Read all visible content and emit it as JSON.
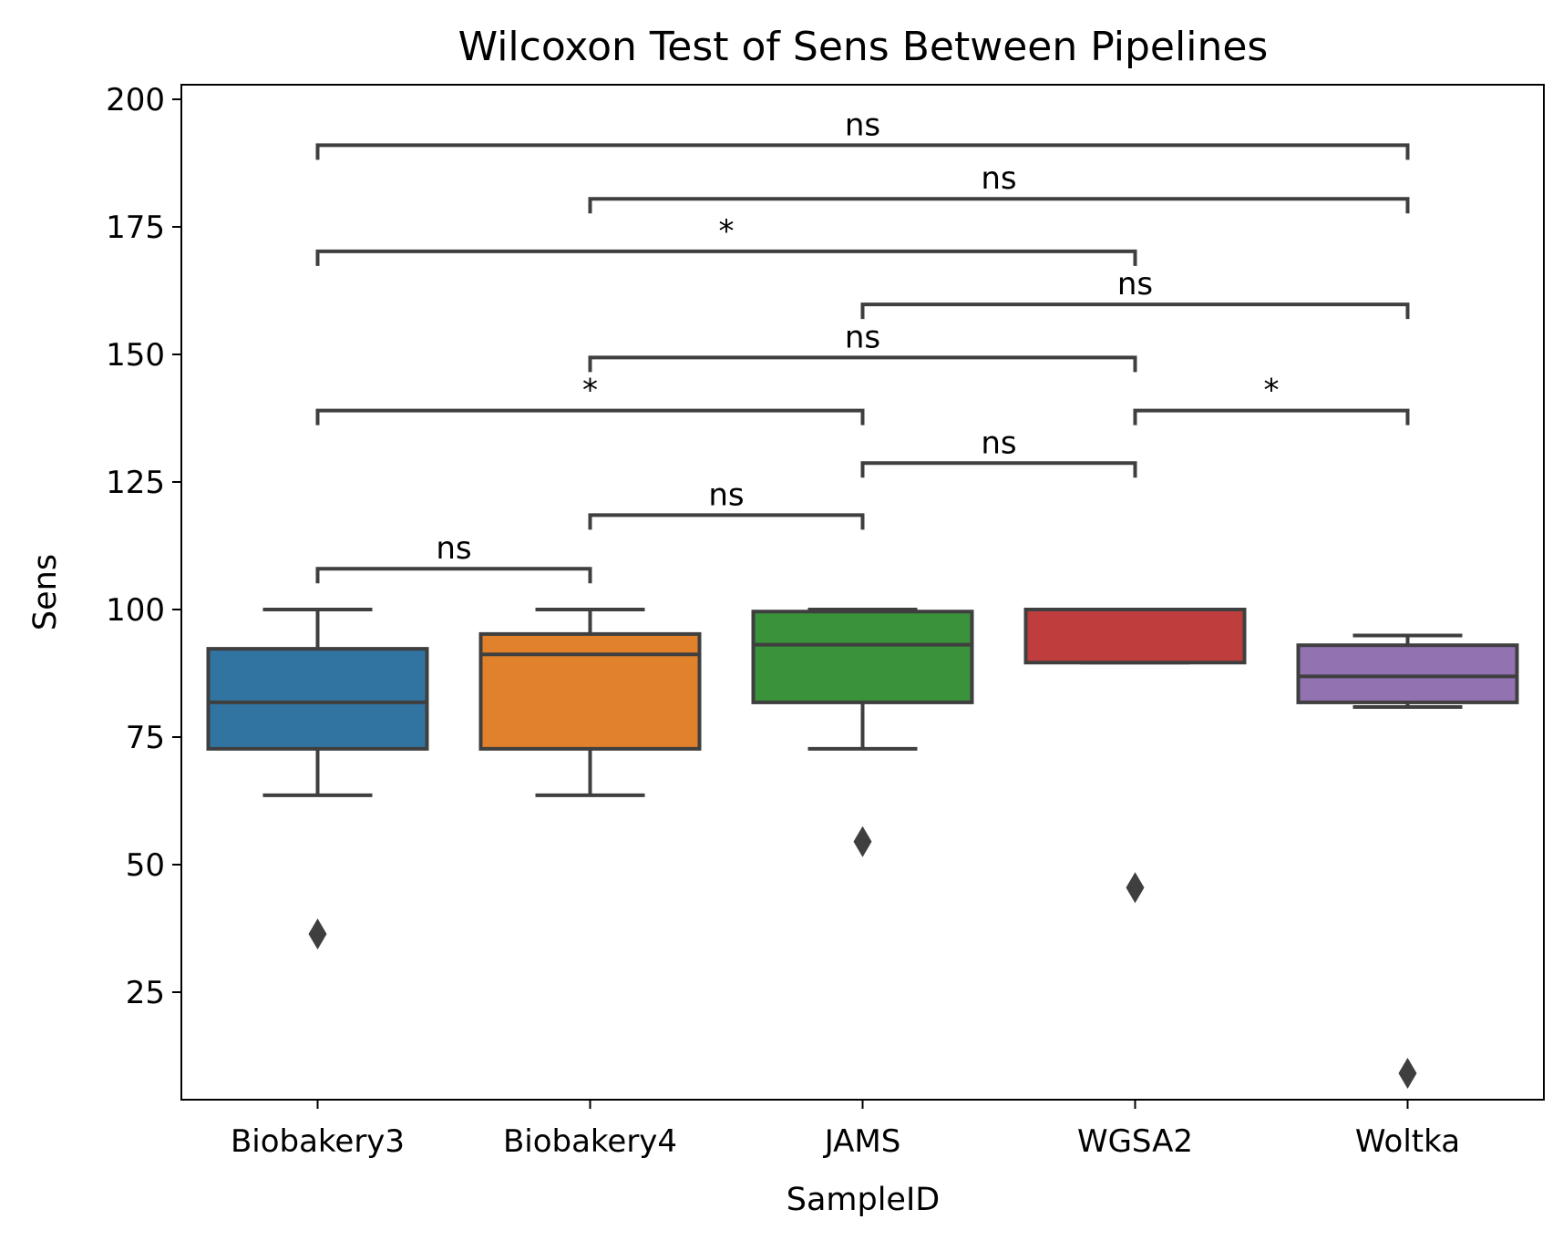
{
  "chart_data": {
    "type": "box",
    "title": "Wilcoxon Test of Sens Between Pipelines",
    "xlabel": "SampleID",
    "ylabel": "Sens",
    "ylim": [
      5,
      203
    ],
    "yticks": [
      25,
      50,
      75,
      100,
      125,
      150,
      175,
      200
    ],
    "categories": [
      "Biobakery3",
      "Biobakery4",
      "JAMS",
      "WGSA2",
      "Woltka"
    ],
    "grid": false,
    "boxes": [
      {
        "name": "Biobakery3",
        "color": "#3274a1",
        "whisker_low": 63.6,
        "q1": 72.7,
        "median": 81.8,
        "q3": 92.3,
        "whisker_high": 100,
        "outliers": [
          36.4
        ]
      },
      {
        "name": "Biobakery4",
        "color": "#e1812c",
        "whisker_low": 63.6,
        "q1": 72.7,
        "median": 91.2,
        "q3": 95.2,
        "whisker_high": 100,
        "outliers": []
      },
      {
        "name": "JAMS",
        "color": "#3a923a",
        "whisker_low": 72.7,
        "q1": 81.8,
        "median": 93.1,
        "q3": 99.6,
        "whisker_high": 100,
        "outliers": [
          54.5
        ]
      },
      {
        "name": "WGSA2",
        "color": "#c03d3e",
        "whisker_low": 89.6,
        "q1": 89.6,
        "median": 100,
        "q3": 100,
        "whisker_high": 100,
        "outliers": [
          45.5
        ]
      },
      {
        "name": "Woltka",
        "color": "#9372b2",
        "whisker_low": 80.9,
        "q1": 81.8,
        "median": 86.9,
        "q3": 93.0,
        "whisker_high": 94.9,
        "outliers": [
          9.1
        ]
      }
    ],
    "comparisons": [
      {
        "from": 0,
        "to": 1,
        "y": 108,
        "label": "ns"
      },
      {
        "from": 1,
        "to": 2,
        "y": 118.5,
        "label": "ns"
      },
      {
        "from": 2,
        "to": 3,
        "y": 128.7,
        "label": "ns"
      },
      {
        "from": 0,
        "to": 2,
        "y": 139,
        "label": "*"
      },
      {
        "from": 3,
        "to": 4,
        "y": 139,
        "label": "*"
      },
      {
        "from": 1,
        "to": 3,
        "y": 149.4,
        "label": "ns"
      },
      {
        "from": 2,
        "to": 4,
        "y": 159.8,
        "label": "ns"
      },
      {
        "from": 0,
        "to": 3,
        "y": 170.2,
        "label": "*"
      },
      {
        "from": 1,
        "to": 4,
        "y": 180.5,
        "label": "ns"
      },
      {
        "from": 0,
        "to": 4,
        "y": 191,
        "label": "ns"
      }
    ]
  }
}
